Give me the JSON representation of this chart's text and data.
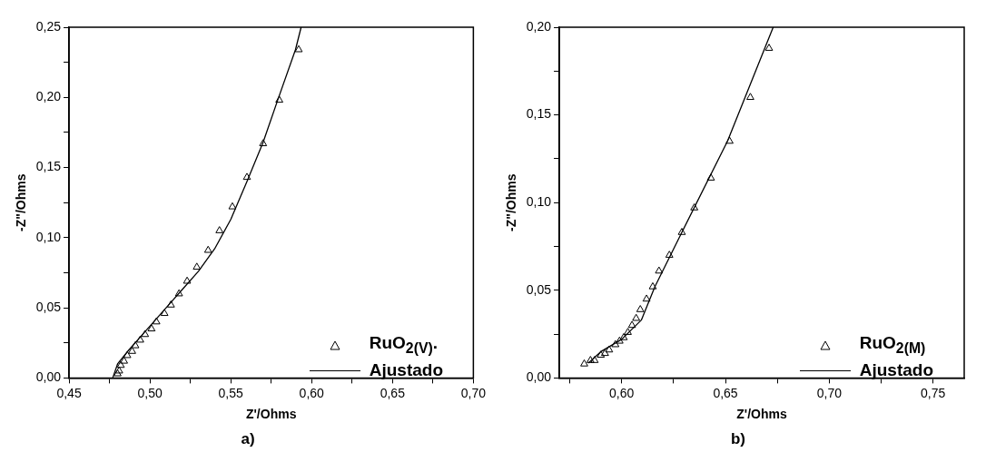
{
  "chart_data": [
    {
      "type": "scatter",
      "xlabel": "Z'/Ohms",
      "ylabel": "-Z\"/Ohms",
      "annotations": [
        "a)"
      ],
      "legend": "bottom right",
      "grid": false,
      "xlim": [
        0.45,
        0.7
      ],
      "ylim": [
        0,
        0.25
      ],
      "xticks": [
        {
          "value": 0.45,
          "label": "0,45"
        },
        {
          "value": 0.475,
          "label": null
        },
        {
          "value": 0.5,
          "label": "0,50"
        },
        {
          "value": 0.525,
          "label": null
        },
        {
          "value": 0.55,
          "label": "0,55"
        },
        {
          "value": 0.575,
          "label": null
        },
        {
          "value": 0.6,
          "label": "0,60"
        },
        {
          "value": 0.625,
          "label": null
        },
        {
          "value": 0.65,
          "label": "0,65"
        },
        {
          "value": 0.675,
          "label": null
        },
        {
          "value": 0.7,
          "label": "0,70"
        }
      ],
      "yticks": [
        {
          "value": 0,
          "label": "0,00"
        },
        {
          "value": 0.025,
          "label": null
        },
        {
          "value": 0.05,
          "label": "0,05"
        },
        {
          "value": 0.075,
          "label": null
        },
        {
          "value": 0.1,
          "label": "0,10"
        },
        {
          "value": 0.125,
          "label": null
        },
        {
          "value": 0.15,
          "label": "0,15"
        },
        {
          "value": 0.175,
          "label": null
        },
        {
          "value": 0.2,
          "label": "0,20"
        },
        {
          "value": 0.225,
          "label": null
        },
        {
          "value": 0.25,
          "label": "0,25"
        }
      ],
      "series": [
        {
          "name": "RuO$_{2(V)}$.",
          "marker": "triangle",
          "color": "#000000",
          "x": [
            0.592,
            0.58,
            0.57,
            0.56,
            0.551,
            0.543,
            0.536,
            0.529,
            0.523,
            0.518,
            0.513,
            0.509,
            0.504,
            0.501,
            0.497,
            0.494,
            0.491,
            0.489,
            0.486,
            0.484,
            0.482,
            0.481,
            0.48
          ],
          "values": [
            0.234,
            0.198,
            0.167,
            0.143,
            0.122,
            0.105,
            0.091,
            0.079,
            0.069,
            0.06,
            0.052,
            0.046,
            0.04,
            0.035,
            0.031,
            0.027,
            0.023,
            0.019,
            0.016,
            0.012,
            0.009,
            0.005,
            0.003
          ]
        },
        {
          "name": "Ajustado",
          "type": "line",
          "marker": "none",
          "line_style": "solid",
          "color": "#000000",
          "x": [
            0.477,
            0.48,
            0.487,
            0.497,
            0.51,
            0.52,
            0.53,
            0.54,
            0.55,
            0.56,
            0.57,
            0.579,
            0.59,
            0.5935
          ],
          "values": [
            0,
            0.01,
            0.02,
            0.033,
            0.05,
            0.063,
            0.076,
            0.092,
            0.113,
            0.14,
            0.168,
            0.198,
            0.234,
            0.25
          ]
        }
      ]
    },
    {
      "type": "scatter",
      "xlabel": "Z'/Ohms",
      "ylabel": "-Z\"/Ohms",
      "annotations": [
        "b)"
      ],
      "legend": "bottom right",
      "grid": false,
      "xlim": [
        0.57,
        0.765
      ],
      "ylim": [
        0,
        0.2
      ],
      "xticks": [
        {
          "value": 0.575,
          "label": null
        },
        {
          "value": 0.6,
          "label": "0,60"
        },
        {
          "value": 0.625,
          "label": null
        },
        {
          "value": 0.65,
          "label": "0,65"
        },
        {
          "value": 0.675,
          "label": null
        },
        {
          "value": 0.7,
          "label": "0,70"
        },
        {
          "value": 0.725,
          "label": null
        },
        {
          "value": 0.75,
          "label": "0,75"
        }
      ],
      "yticks": [
        {
          "value": 0,
          "label": "0,00"
        },
        {
          "value": 0.025,
          "label": null
        },
        {
          "value": 0.05,
          "label": "0,05"
        },
        {
          "value": 0.075,
          "label": null
        },
        {
          "value": 0.1,
          "label": "0,10"
        },
        {
          "value": 0.125,
          "label": null
        },
        {
          "value": 0.15,
          "label": "0,15"
        },
        {
          "value": 0.175,
          "label": null
        },
        {
          "value": 0.2,
          "label": "0,20"
        }
      ],
      "series": [
        {
          "name": "RuO$_{2(M)}$",
          "marker": "triangle",
          "color": "#000000",
          "x": [
            0.671,
            0.662,
            0.652,
            0.643,
            0.635,
            0.629,
            0.623,
            0.618,
            0.615,
            0.612,
            0.609,
            0.607,
            0.605,
            0.603,
            0.601,
            0.599,
            0.597,
            0.594,
            0.592,
            0.59,
            0.587,
            0.585,
            0.582
          ],
          "values": [
            0.188,
            0.16,
            0.135,
            0.114,
            0.097,
            0.083,
            0.07,
            0.061,
            0.052,
            0.045,
            0.039,
            0.034,
            0.03,
            0.026,
            0.023,
            0.021,
            0.019,
            0.016,
            0.014,
            0.013,
            0.01,
            0.01,
            0.008
          ]
        },
        {
          "name": "Ajustado",
          "type": "line",
          "marker": "none",
          "line_style": "solid",
          "color": "#000000",
          "x": [
            0.584,
            0.59,
            0.6,
            0.6095,
            0.616,
            0.629,
            0.651,
            0.673
          ],
          "values": [
            0.0085,
            0.015,
            0.022,
            0.033,
            0.052,
            0.083,
            0.135,
            0.2
          ]
        }
      ]
    }
  ]
}
